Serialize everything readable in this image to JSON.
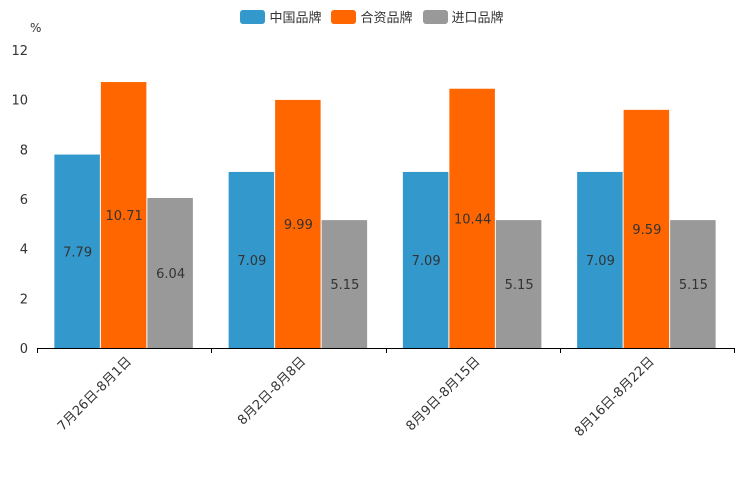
{
  "chart_data": {
    "type": "bar",
    "title": "",
    "unit_label": "%",
    "xlabel": "",
    "ylabel": "",
    "ylim": [
      0,
      12
    ],
    "yticks": [
      0,
      2,
      4,
      6,
      8,
      10,
      12
    ],
    "categories": [
      "7月26日-8月1日",
      "8月2日-8月8日",
      "8月9日-8月15日",
      "8月16日-8月22日"
    ],
    "series": [
      {
        "name": "中国品牌",
        "color": "#3398CC",
        "values": [
          7.79,
          7.09,
          7.09,
          7.09
        ],
        "labels": [
          "7.79",
          "7.09",
          "7.09",
          "7.09"
        ]
      },
      {
        "name": "合资品牌",
        "color": "#FF6600",
        "values": [
          10.71,
          9.99,
          10.44,
          9.59
        ],
        "labels": [
          "10.71",
          "9.99",
          "10.44",
          "9.59"
        ]
      },
      {
        "name": "进口品牌",
        "color": "#999999",
        "values": [
          6.04,
          5.15,
          5.15,
          5.15
        ],
        "labels": [
          "6.04",
          "5.15",
          "5.15",
          "5.15"
        ]
      }
    ]
  }
}
